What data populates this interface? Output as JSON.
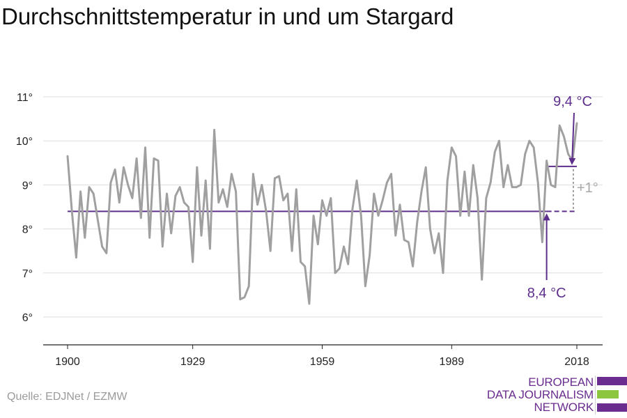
{
  "chart_data": {
    "type": "line",
    "title": "Durchschnittstemperatur in und um Stargard",
    "xlabel": "",
    "ylabel": "",
    "xlim": [
      1900,
      2018
    ],
    "ylim": [
      5.6,
      11.3
    ],
    "x_ticks": [
      1900,
      1929,
      1959,
      1989,
      2018
    ],
    "x_tick_labels": [
      "1900",
      "1929",
      "1959",
      "1989",
      "2018"
    ],
    "y_ticks": [
      6,
      7,
      8,
      9,
      10,
      11
    ],
    "y_tick_labels": [
      "6°",
      "7°",
      "8°",
      "9°",
      "10°",
      "11°"
    ],
    "grid": true,
    "series": [
      {
        "color": "#a0a0a0",
        "x": [
          1900,
          1901,
          1902,
          1903,
          1904,
          1905,
          1906,
          1907,
          1908,
          1909,
          1910,
          1911,
          1912,
          1913,
          1914,
          1915,
          1916,
          1917,
          1918,
          1919,
          1920,
          1921,
          1922,
          1923,
          1924,
          1925,
          1926,
          1927,
          1928,
          1929,
          1930,
          1931,
          1932,
          1933,
          1934,
          1935,
          1936,
          1937,
          1938,
          1939,
          1940,
          1941,
          1942,
          1943,
          1944,
          1945,
          1946,
          1947,
          1948,
          1949,
          1950,
          1951,
          1952,
          1953,
          1954,
          1955,
          1956,
          1957,
          1958,
          1959,
          1960,
          1961,
          1962,
          1963,
          1964,
          1965,
          1966,
          1967,
          1968,
          1969,
          1970,
          1971,
          1972,
          1973,
          1974,
          1975,
          1976,
          1977,
          1978,
          1979,
          1980,
          1981,
          1982,
          1983,
          1984,
          1985,
          1986,
          1987,
          1988,
          1989,
          1990,
          1991,
          1992,
          1993,
          1994,
          1995,
          1996,
          1997,
          1998,
          1999,
          2000,
          2001,
          2002,
          2003,
          2004,
          2005,
          2006,
          2007,
          2008,
          2009,
          2010,
          2011,
          2012,
          2013,
          2014,
          2015,
          2016,
          2017,
          2018
        ],
        "values": [
          9.65,
          8.4,
          7.35,
          8.85,
          7.8,
          8.95,
          8.8,
          8.2,
          7.6,
          7.45,
          9.05,
          9.35,
          8.6,
          9.4,
          9.0,
          8.7,
          9.6,
          8.25,
          9.85,
          7.8,
          9.6,
          9.55,
          7.6,
          8.8,
          7.9,
          8.75,
          8.95,
          8.6,
          8.5,
          7.25,
          9.4,
          7.85,
          9.1,
          7.55,
          10.25,
          8.6,
          8.9,
          8.5,
          9.25,
          8.85,
          6.4,
          6.45,
          6.7,
          9.25,
          8.55,
          9.0,
          8.4,
          7.5,
          9.15,
          9.2,
          8.65,
          8.8,
          7.5,
          8.9,
          7.25,
          7.15,
          6.3,
          8.3,
          7.65,
          8.65,
          8.3,
          8.7,
          7.0,
          7.1,
          7.6,
          7.2,
          8.45,
          9.1,
          8.3,
          6.7,
          7.4,
          8.8,
          8.3,
          8.65,
          9.05,
          9.25,
          7.85,
          8.55,
          7.75,
          7.7,
          7.15,
          8.15,
          8.85,
          9.4,
          8.0,
          7.45,
          7.9,
          7.0,
          9.1,
          9.85,
          9.65,
          8.3,
          9.3,
          8.3,
          9.45,
          8.7,
          6.85,
          8.7,
          9.05,
          9.75,
          10.0,
          8.95,
          9.45,
          8.95,
          8.95,
          9.0,
          9.7,
          10.0,
          9.85,
          9.05,
          7.7,
          9.55,
          9.0,
          8.95,
          10.35,
          10.1,
          9.7,
          9.55,
          10.4
        ]
      }
    ],
    "reference_lines": [
      {
        "label": "8,4 °C",
        "value": 8.4,
        "from": 1900,
        "to": 2018,
        "color": "#5d2e8c"
      },
      {
        "label": "9,4 °C",
        "value": 9.42,
        "from": 2011,
        "to": 2018,
        "color": "#5d2e8c"
      }
    ],
    "difference_label": "+1°"
  },
  "source": "Quelle: EDJNet / EZMW",
  "logo": {
    "lines": [
      "EUROPEAN",
      "DATA JOURNALISM",
      "NETWORK"
    ],
    "colors": {
      "primary": "#6a2c8e",
      "accent": "#8cc63f"
    }
  }
}
